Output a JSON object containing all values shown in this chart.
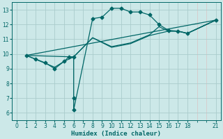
{
  "xlabel": "Humidex (Indice chaleur)",
  "bg_color": "#cce8e8",
  "grid_major_color": "#aacccc",
  "grid_minor_color": "#ddbbbb",
  "line_color": "#006666",
  "xlim": [
    -0.5,
    21.5
  ],
  "ylim": [
    5.5,
    13.5
  ],
  "xticks": [
    0,
    1,
    2,
    3,
    4,
    5,
    6,
    7,
    8,
    9,
    10,
    11,
    12,
    13,
    14,
    15,
    16,
    17,
    18,
    21
  ],
  "yticks": [
    6,
    7,
    8,
    9,
    10,
    11,
    12,
    13
  ],
  "line_main": {
    "x": [
      1,
      2,
      3,
      4,
      5,
      5.5,
      6,
      6,
      6,
      8,
      9,
      10,
      11,
      12,
      13,
      14,
      15,
      16,
      17,
      18,
      21
    ],
    "y": [
      9.9,
      9.65,
      9.4,
      9.0,
      9.5,
      9.8,
      9.8,
      7.0,
      6.2,
      12.4,
      12.5,
      13.1,
      13.1,
      12.85,
      12.85,
      12.65,
      12.0,
      11.6,
      11.55,
      11.4,
      12.3
    ]
  },
  "line_straight": {
    "x": [
      1,
      21
    ],
    "y": [
      9.9,
      12.3
    ]
  },
  "line_mid1": {
    "x": [
      1,
      6,
      8,
      10,
      12,
      14,
      16,
      17,
      18,
      21
    ],
    "y": [
      9.9,
      9.8,
      11.1,
      10.45,
      10.7,
      11.25,
      11.55,
      11.55,
      11.4,
      12.3
    ]
  },
  "line_mid2": {
    "x": [
      1,
      4,
      5,
      6,
      8,
      10,
      12,
      14,
      15,
      16,
      17,
      18,
      21
    ],
    "y": [
      9.9,
      9.1,
      9.5,
      9.8,
      11.1,
      10.5,
      10.75,
      11.3,
      11.85,
      11.55,
      11.55,
      11.4,
      12.3
    ]
  }
}
